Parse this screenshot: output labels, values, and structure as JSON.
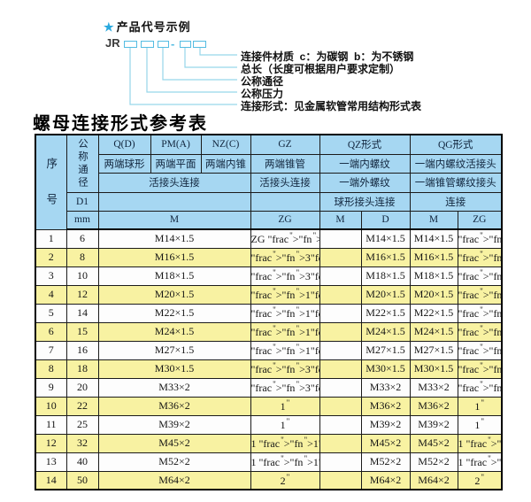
{
  "diagram": {
    "star_icon": "★",
    "heading": "产品代号示例",
    "code_prefix": "JR",
    "code_dash": "-",
    "labels": [
      "连接件材质  c：为碳钢  b：为不锈钢",
      "总长（长度可根据用户要求定制）",
      "公称通径",
      "公称压力",
      "连接形式：见金属软管常用结构形式表"
    ]
  },
  "table": {
    "title": "螺母连接形式参考表",
    "header": {
      "seq": "序号",
      "dn": "公称通径",
      "d1": "D1",
      "unit_mm": "mm",
      "q_name": "Q(D)",
      "q_desc": "两端球形",
      "pm_name": "PM(A)",
      "pm_desc": "两端平面",
      "nz_name": "NZ(C)",
      "nz_desc": "两端内锥",
      "gz_name": "GZ",
      "gz_desc": "两端锥管",
      "gz_row3": "活接头连接",
      "gz_unit": "ZG",
      "left_row3": "活接头连接",
      "left_unit": "M",
      "qz_name": "QZ形式",
      "qz_row2": "一端内螺纹",
      "qz_row3": "一端外螺纹",
      "qz_row4": "球形接头连接",
      "qz_unit_m": "M",
      "qz_unit_d": "D",
      "qg_name": "QG形式",
      "qg_row2": "一端内螺纹活接头",
      "qg_row3": "一端锥管螺纹接头",
      "qg_row4": "连接",
      "qg_unit_m": "M",
      "qg_unit_zg": "ZG"
    },
    "rows": [
      [
        "1",
        "6",
        "M14×1.5",
        "ZG 1/4\"",
        "",
        "M14×1.5",
        "M14×1.5",
        "1/4\""
      ],
      [
        "2",
        "8",
        "M16×1.5",
        "3/8\"",
        "",
        "M16×1.5",
        "M16×1.5",
        "3/8\""
      ],
      [
        "3",
        "10",
        "M18×1.5",
        "3/8\"",
        "",
        "M18×1.5",
        "M18×1.5",
        "3/8\""
      ],
      [
        "4",
        "12",
        "M20×1.5",
        "1/2\"",
        "",
        "M20×1.5",
        "M20×1.5",
        "1/2\""
      ],
      [
        "5",
        "14",
        "M22×1.5",
        "1/2\"",
        "",
        "M22×1.5",
        "M22×1.5",
        "1/2\""
      ],
      [
        "6",
        "15",
        "M24×1.5",
        "1/2\"",
        "",
        "M24×1.5",
        "M24×1.5",
        "1/2\""
      ],
      [
        "7",
        "16",
        "M27×1.5",
        "1/2\"",
        "",
        "M27×1.5",
        "M27×1.5",
        "1/2\""
      ],
      [
        "8",
        "18",
        "M30×1.5",
        "3/4\"",
        "",
        "M30×1.5",
        "M30×1.5",
        "3/4\""
      ],
      [
        "9",
        "20",
        "M33×2",
        "3/4\"",
        "",
        "M33×2",
        "M33×2",
        "3/4\""
      ],
      [
        "10",
        "22",
        "M36×2",
        "1\"",
        "",
        "M36×2",
        "M36×2",
        "1\""
      ],
      [
        "11",
        "25",
        "M39×2",
        "1\"",
        "",
        "M39×2",
        "M39×2",
        "1\""
      ],
      [
        "12",
        "32",
        "M45×2",
        "1 1/4\"",
        "",
        "M45×2",
        "M45×2",
        "1 1/4\""
      ],
      [
        "13",
        "40",
        "M52×2",
        "1 1/2\"",
        "",
        "M52×2",
        "M52×2",
        "1 1/2\""
      ],
      [
        "14",
        "50",
        "M64×2",
        "2\"",
        "",
        "M64×2",
        "M64×2",
        "2\""
      ]
    ]
  },
  "colors": {
    "header_bg": "#a6d7f2",
    "row_alt_bg": "#f8f2a2",
    "row_bg": "#fdfdfd",
    "accent_cyan": "#2aa9de",
    "line_cyan": "#96d6ea",
    "box_border_cyan": "#54bce2",
    "border": "#1b1b1b"
  }
}
